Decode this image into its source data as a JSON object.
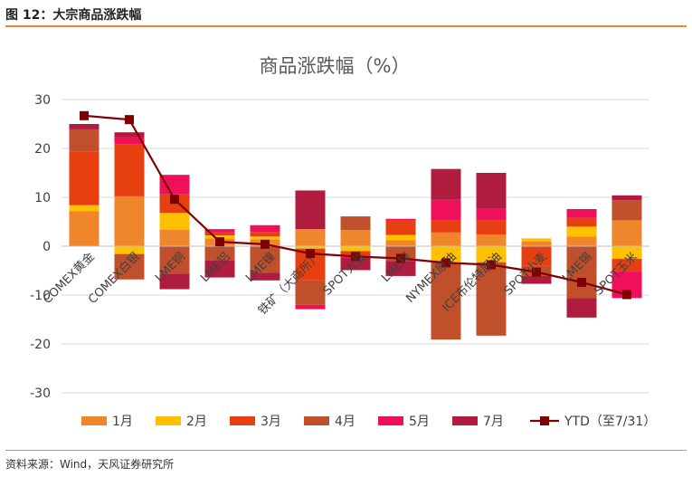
{
  "figure_label": "图 12：大宗商品涨跌幅",
  "source_note": "资料来源：Wind，天风证券研究所",
  "chart_data": {
    "type": "bar",
    "stacked": true,
    "title": "商品涨跌幅（%）",
    "xlabel": "",
    "ylabel": "",
    "ylim": [
      -30,
      30
    ],
    "yticks": [
      -30,
      -20,
      -10,
      0,
      10,
      20,
      30
    ],
    "legend_position": "bottom",
    "categories": [
      "COMEX黄金",
      "COMEX白银",
      "LME铜",
      "LME铝",
      "LME镍",
      "铁矿（大商所）",
      "SPOT大豆",
      "LME锌",
      "NYMEX原油",
      "ICE布伦特原油",
      "SPOT小麦",
      "LME锡",
      "SPOT玉米"
    ],
    "series": [
      {
        "name": "1月",
        "color": "#f0862b",
        "values": [
          7.2,
          10.2,
          3.4,
          1.6,
          1.4,
          3.5,
          3.3,
          1.2,
          2.8,
          2.4,
          1.0,
          2.0,
          5.3
        ]
      },
      {
        "name": "2月",
        "color": "#ffc000",
        "values": [
          1.2,
          -1.6,
          3.4,
          0.6,
          0.6,
          -0.5,
          -1.0,
          1.1,
          -3.3,
          -3.3,
          0.6,
          2.0,
          -2.6
        ]
      },
      {
        "name": "3月",
        "color": "#e64010",
        "values": [
          11.0,
          10.7,
          3.8,
          0.6,
          0.9,
          -6.5,
          -1.2,
          2.9,
          2.5,
          2.9,
          -4.0,
          1.8,
          -2.6
        ]
      },
      {
        "name": "4月",
        "color": "#c0502b",
        "values": [
          4.5,
          -5.2,
          -5.6,
          -2.9,
          -5.4,
          -5.0,
          2.8,
          -3.0,
          -15.8,
          -15.0,
          -2.1,
          -10.6,
          4.1
        ]
      },
      {
        "name": "5月",
        "color": "#f0105a",
        "values": [
          0.0,
          1.4,
          4.0,
          0.7,
          1.4,
          -0.9,
          -0.3,
          0.4,
          4.2,
          2.4,
          0.0,
          1.8,
          -5.4
        ]
      },
      {
        "name": "7月",
        "color": "#b01c3e",
        "values": [
          1.1,
          1.0,
          -3.2,
          -3.5,
          -1.6,
          7.9,
          -2.4,
          -3.1,
          6.3,
          7.3,
          -1.6,
          -4.0,
          1.0
        ]
      }
    ],
    "ytd": {
      "name": "YTD（至7/31）",
      "color": "#7f0000",
      "values": [
        26.7,
        25.9,
        9.6,
        0.9,
        0.4,
        -1.5,
        -2.1,
        -2.5,
        -3.4,
        -3.8,
        -5.3,
        -7.4,
        -9.9
      ]
    }
  }
}
